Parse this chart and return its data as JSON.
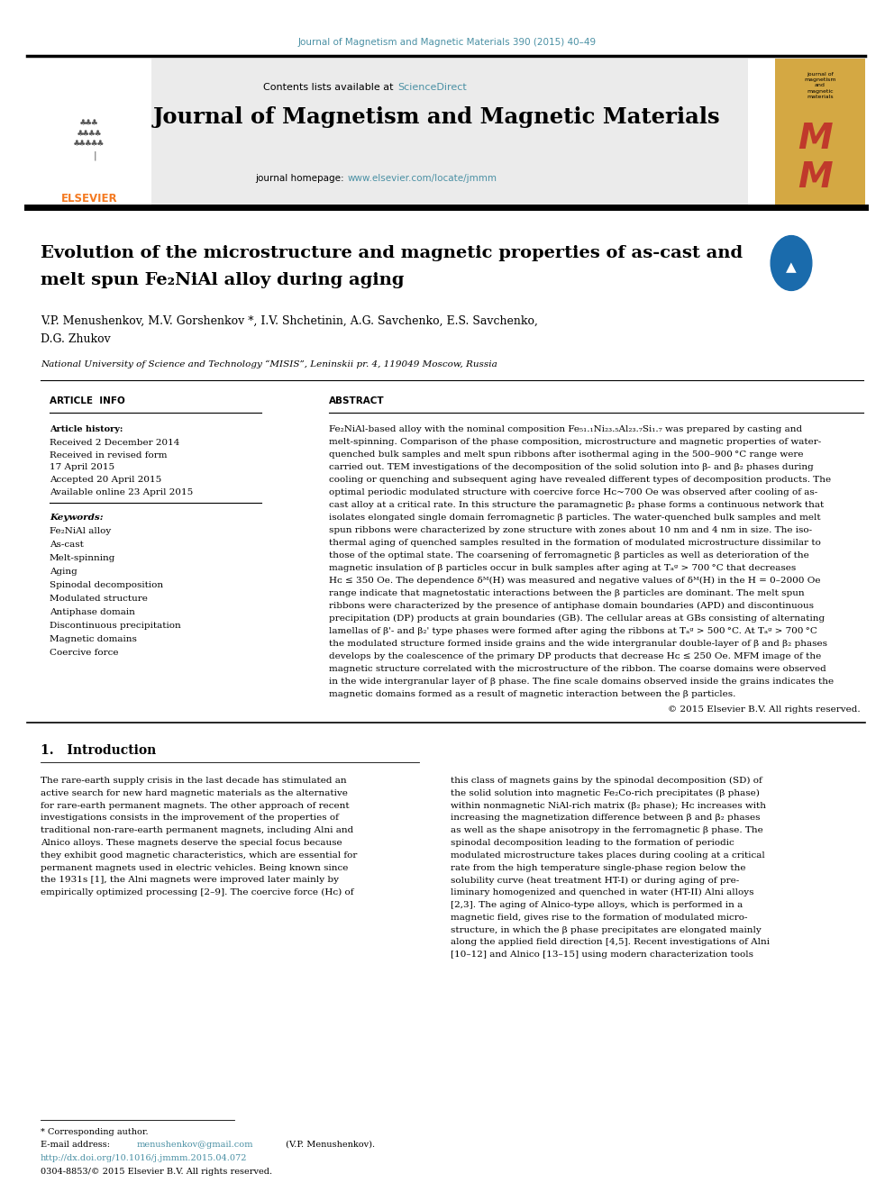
{
  "page_width": 9.92,
  "page_height": 13.23,
  "dpi": 100,
  "background_color": "#ffffff",
  "top_journal_line": "Journal of Magnetism and Magnetic Materials 390 (2015) 40–49",
  "top_journal_color": "#4a90a4",
  "header_journal_title": "Journal of Magnetism and Magnetic Materials",
  "header_homepage_url": "www.elsevier.com/locate/jmmm",
  "article_title_line1": "Evolution of the microstructure and magnetic properties of as-cast and",
  "article_title_line2": "melt spun Fe₂NiAl alloy during aging",
  "authors": "V.P. Menushenkov, M.V. Gorshenkov *, I.V. Shchetinin, A.G. Savchenko, E.S. Savchenko,",
  "authors_line2": "D.G. Zhukov",
  "affiliation": "National University of Science and Technology “MISIS”, Leninskii pr. 4, 119049 Moscow, Russia",
  "article_info_label": "ARTICLE  INFO",
  "abstract_label": "ABSTRACT",
  "article_history_label": "Article history:",
  "received1": "Received 2 December 2014",
  "received_revised": "Received in revised form",
  "april17": "17 April 2015",
  "accepted": "Accepted 20 April 2015",
  "available": "Available online 23 April 2015",
  "keywords_label": "Keywords:",
  "keywords": [
    "Fe₂NiAl alloy",
    "As-cast",
    "Melt-spinning",
    "Aging",
    "Spinodal decomposition",
    "Modulated structure",
    "Antiphase domain",
    "Discontinuous precipitation",
    "Magnetic domains",
    "Coercive force"
  ],
  "copyright": "© 2015 Elsevier B.V. All rights reserved.",
  "intro_section": "1.   Introduction",
  "footnote_asterisk": "* Corresponding author.",
  "footnote_email_prefix": "E-mail address: ",
  "footnote_email": "menushenkov@gmail.com",
  "footnote_email_suffix": " (V.P. Menushenkov).",
  "footnote_doi": "http://dx.doi.org/10.1016/j.jmmm.2015.04.072",
  "footnote_issn": "0304-8853/© 2015 Elsevier B.V. All rights reserved.",
  "elsevier_logo_color_orange": "#f47920",
  "teal_color": "#4a90a4",
  "journal_logo_red": "#c0392b",
  "journal_logo_yellow": "#d4a843"
}
